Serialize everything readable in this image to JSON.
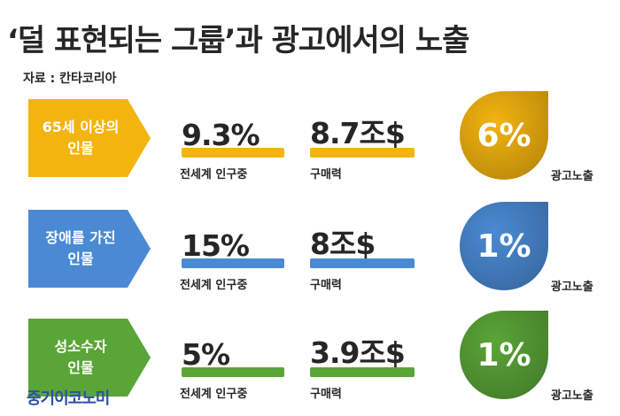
{
  "title": "‘덜 표현되는 그룹’과 광고에서의 노출",
  "source": "자료 : 칸타코리아",
  "logo": "중기이코노미",
  "chart_data": {
    "type": "table",
    "title": "‘덜 표현되는 그룹’과 광고에서의 노출",
    "columns": [
      "전세계 인구중",
      "구매력",
      "광고노출"
    ],
    "rows": [
      {
        "group": "65세 이상의\n인물",
        "population_share": "9.3%",
        "purchasing_power": "8.7조$",
        "ad_exposure": "6%",
        "population_share_pct": 9.3,
        "purchasing_power_trillion_usd": 8.7,
        "ad_exposure_pct": 6,
        "color": "#f3b40f"
      },
      {
        "group": "장애를 가진\n인물",
        "population_share": "15%",
        "purchasing_power": "8조$",
        "ad_exposure": "1%",
        "population_share_pct": 15,
        "purchasing_power_trillion_usd": 8,
        "ad_exposure_pct": 1,
        "color": "#4a8ad4"
      },
      {
        "group": "성소수자\n인물",
        "population_share": "5%",
        "purchasing_power": "3.9조$",
        "ad_exposure": "1%",
        "population_share_pct": 5,
        "purchasing_power_trillion_usd": 3.9,
        "ad_exposure_pct": 1,
        "color": "#5aa537"
      }
    ],
    "population_caption": "전세계 인구중",
    "power_caption": "구매력",
    "exposure_caption": "광고노출"
  }
}
